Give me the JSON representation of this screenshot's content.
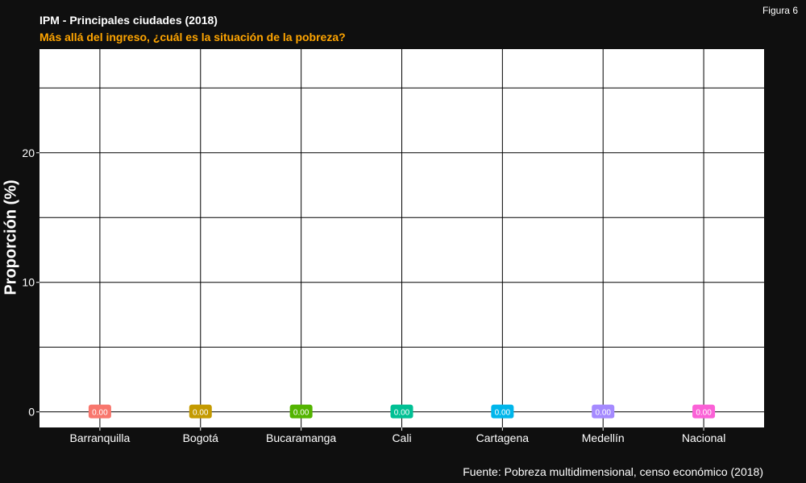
{
  "figure_label": "Figura 6",
  "caption": "Fuente: Pobreza multidimensional, censo económico (2018)",
  "colors": {
    "background": "#0f0f0f",
    "panel": "#ffffff",
    "grid": "#000000",
    "title": "#ffffff",
    "subtitle": "#ffa500"
  },
  "chart_data": {
    "type": "bar",
    "title": "IPM - Principales ciudades (2018)",
    "subtitle": "Más allá del ingreso, ¿cuál es la situación de la pobreza?",
    "xlabel": "",
    "ylabel": "Proporción (%)",
    "categories": [
      "Barranquilla",
      "Bogotá",
      "Bucaramanga",
      "Cali",
      "Cartagena",
      "Medellín",
      "Nacional"
    ],
    "values": [
      0,
      0,
      0,
      0,
      0,
      0,
      0
    ],
    "data_labels": [
      "0.00",
      "0.00",
      "0.00",
      "0.00",
      "0.00",
      "0.00",
      "0.00"
    ],
    "label_colors": [
      "#f8766d",
      "#c49a00",
      "#53b400",
      "#00c094",
      "#00b6eb",
      "#a58aff",
      "#fb61d7"
    ],
    "ylim": [
      -1.2,
      28
    ],
    "yticks": [
      0,
      10,
      20
    ],
    "grid": true,
    "legend": "none"
  }
}
